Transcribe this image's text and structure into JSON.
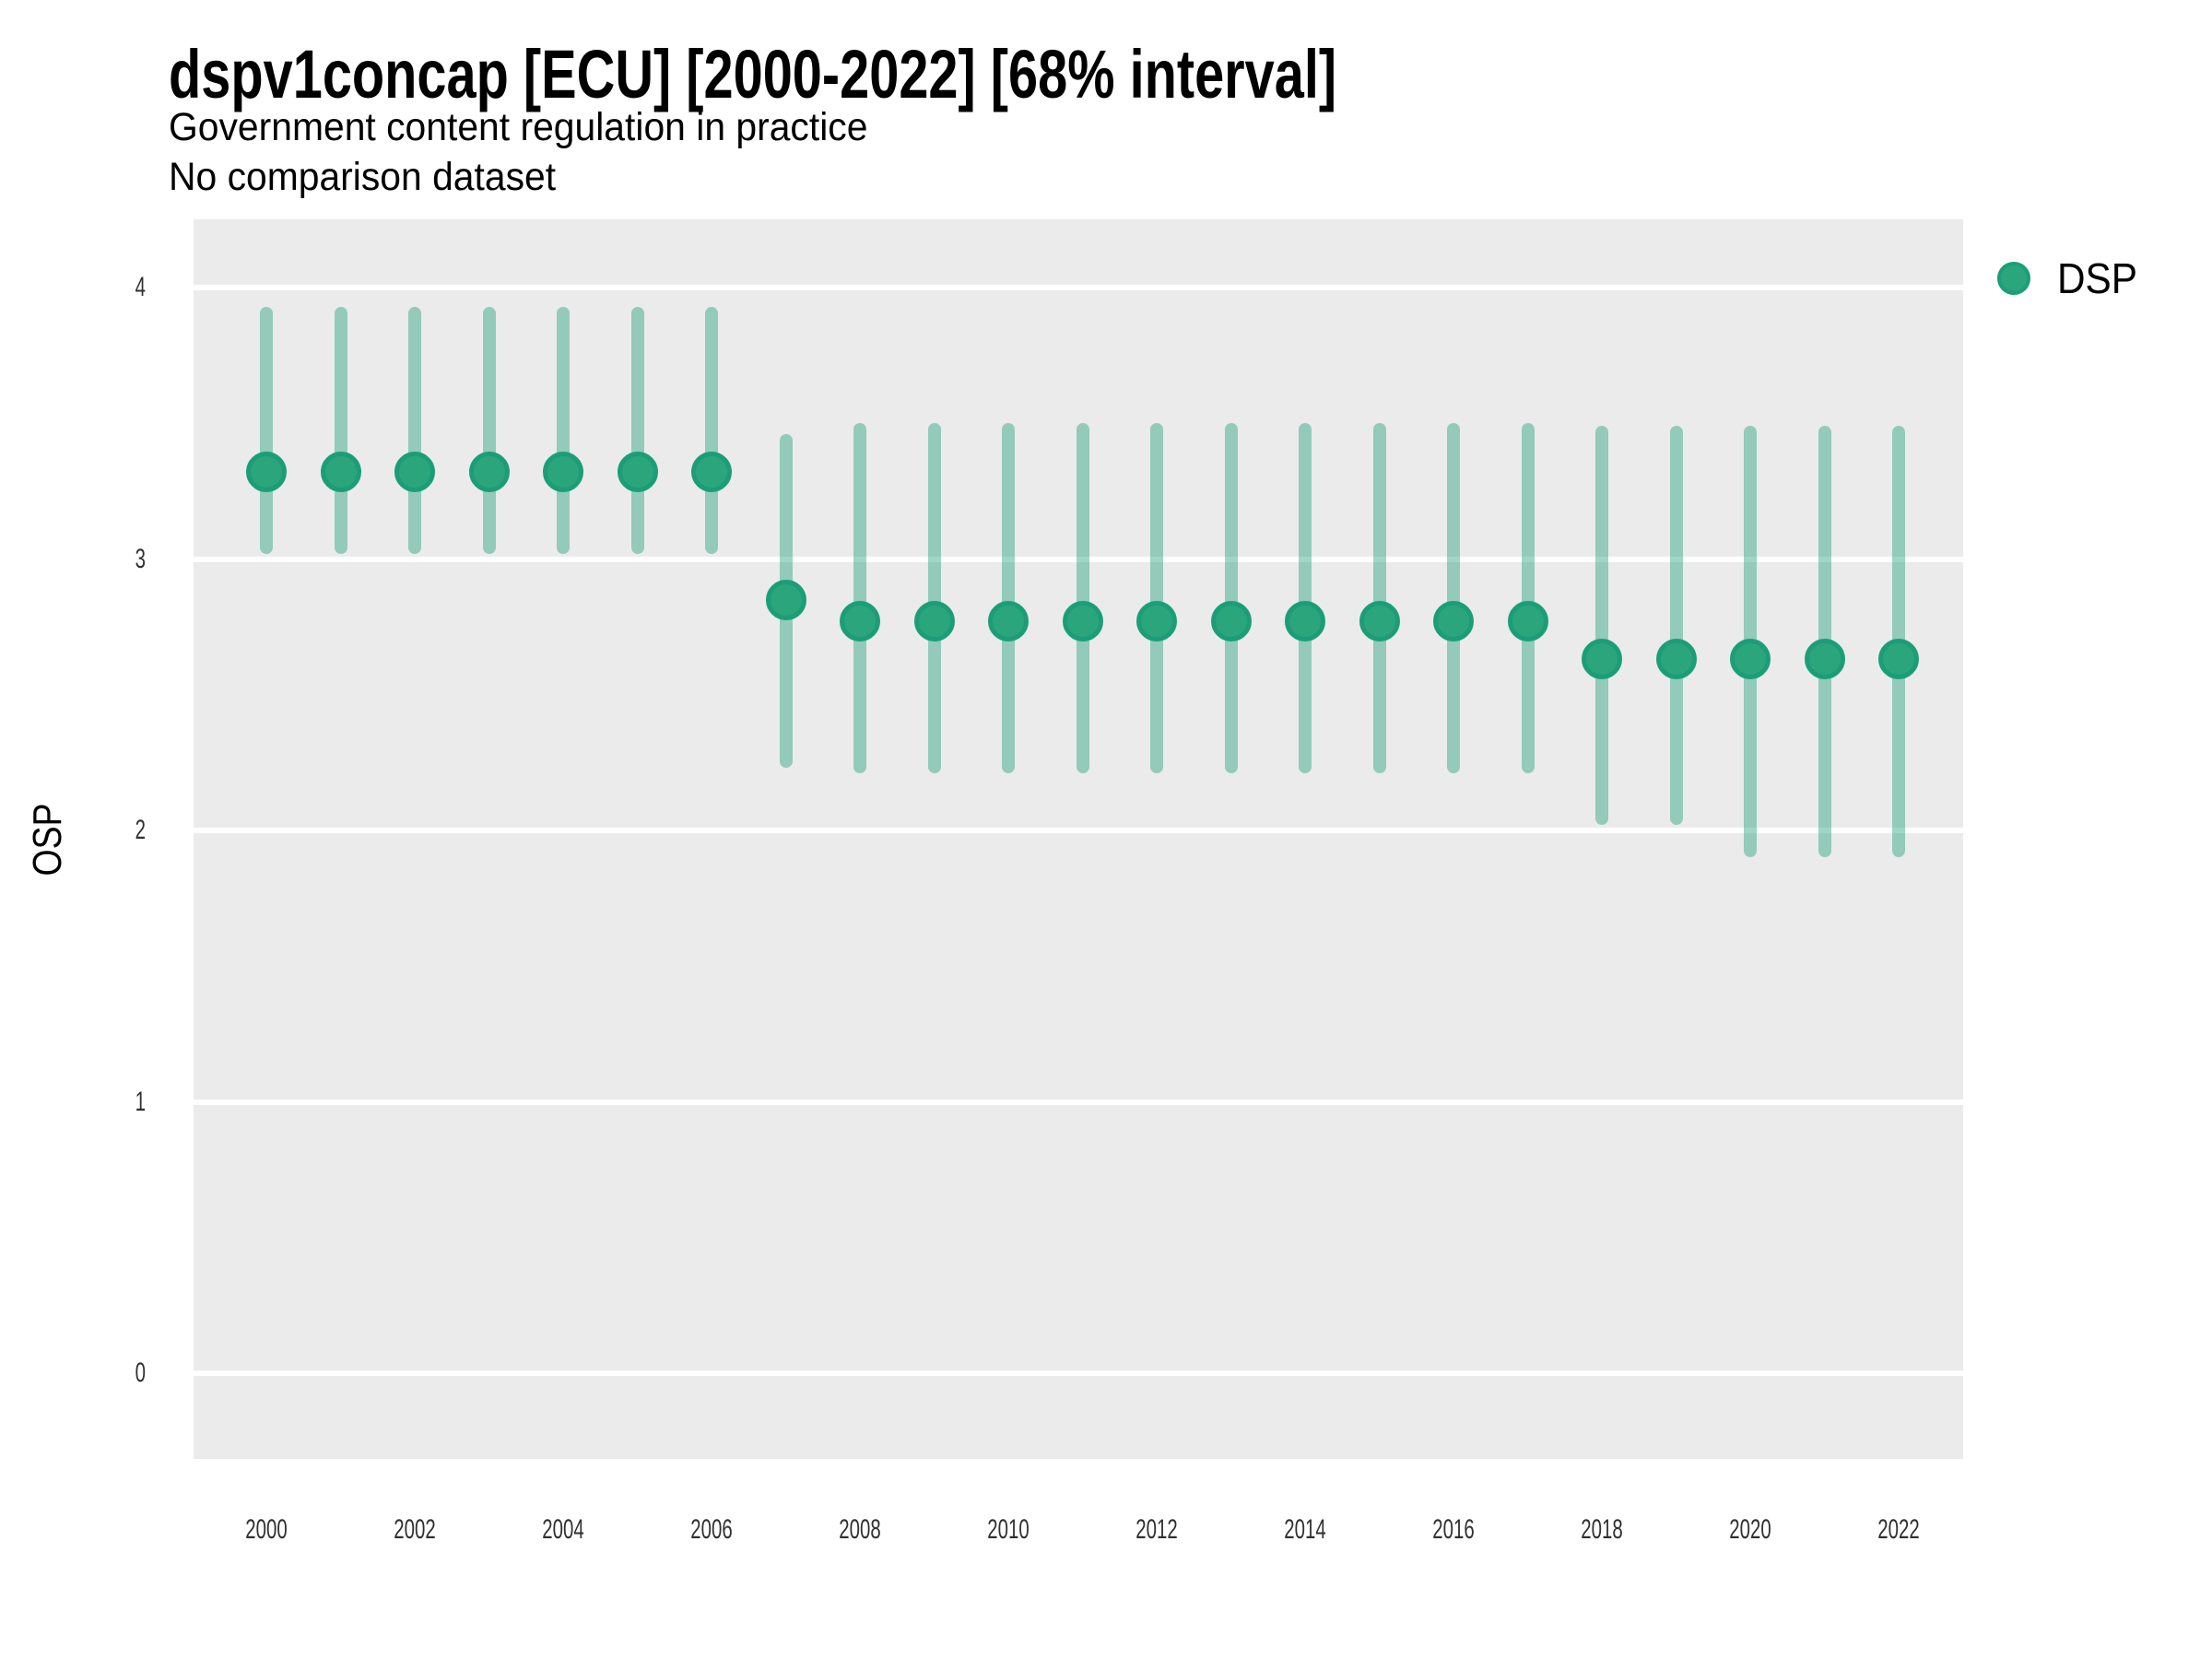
{
  "chart_data": {
    "type": "pointrange",
    "title": "dspv1concap [ECU] [2000-2022] [68% interval]",
    "subtitle": "Government content regulation in practice",
    "note": "No comparison dataset",
    "xlabel": "",
    "ylabel": "OSP",
    "legend": {
      "label": "DSP",
      "position": "right-top"
    },
    "x": [
      2000,
      2001,
      2002,
      2003,
      2004,
      2005,
      2006,
      2007,
      2008,
      2009,
      2010,
      2011,
      2012,
      2013,
      2014,
      2015,
      2016,
      2017,
      2018,
      2019,
      2020,
      2021,
      2022
    ],
    "series": [
      {
        "name": "DSP",
        "est": [
          3.32,
          3.32,
          3.32,
          3.32,
          3.32,
          3.32,
          3.32,
          2.85,
          2.77,
          2.77,
          2.77,
          2.77,
          2.77,
          2.77,
          2.77,
          2.77,
          2.77,
          2.77,
          2.63,
          2.63,
          2.63,
          2.63,
          2.63
        ],
        "lo": [
          3.02,
          3.02,
          3.02,
          3.02,
          3.02,
          3.02,
          3.02,
          2.23,
          2.21,
          2.21,
          2.21,
          2.21,
          2.21,
          2.21,
          2.21,
          2.21,
          2.21,
          2.21,
          2.02,
          2.02,
          1.9,
          1.9,
          1.9
        ],
        "hi": [
          3.93,
          3.93,
          3.93,
          3.93,
          3.93,
          3.93,
          3.93,
          3.46,
          3.5,
          3.5,
          3.5,
          3.5,
          3.5,
          3.5,
          3.5,
          3.5,
          3.5,
          3.5,
          3.49,
          3.49,
          3.49,
          3.49,
          3.49
        ]
      }
    ],
    "yticks": [
      0,
      1,
      2,
      3,
      4
    ],
    "xticks": [
      2000,
      2002,
      2004,
      2006,
      2008,
      2010,
      2012,
      2014,
      2016,
      2018,
      2020,
      2022
    ],
    "ylim": [
      -0.32,
      4.25
    ],
    "grid": "white-major-on-grey",
    "legend_position": "right-top"
  },
  "colors": {
    "point_fill": "#2BA57B",
    "point_stroke": "#1B9E77",
    "interval": "rgba(27,158,119,0.42)",
    "panel_bg": "#EBEBEB",
    "gridline": "#FFFFFF",
    "text": "#000000",
    "axis_text": "#303030"
  }
}
